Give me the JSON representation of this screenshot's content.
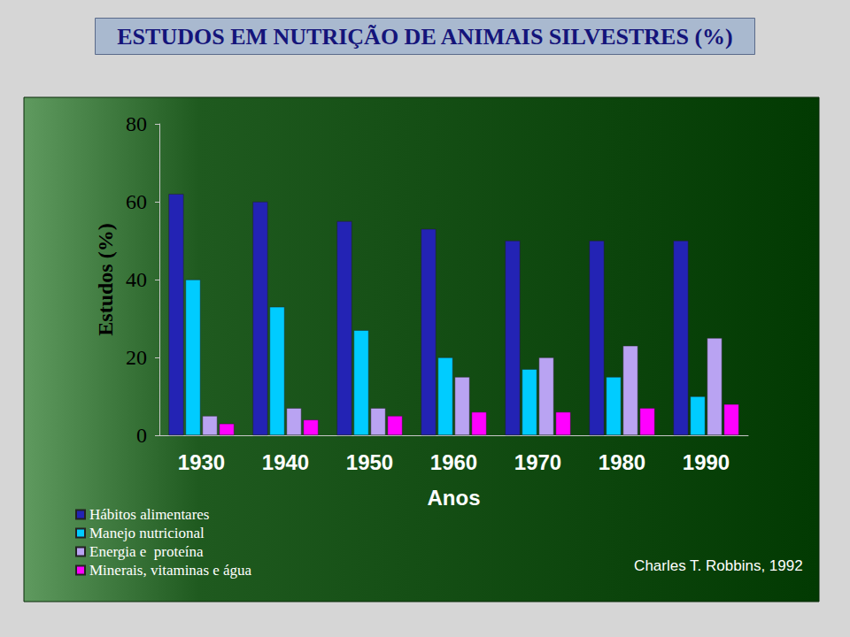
{
  "chart_data": {
    "type": "bar",
    "title": "ESTUDOS EM NUTRIÇÃO DE ANIMAIS SILVESTRES (%)",
    "x_label": "Anos",
    "y_label": "Estudos (%)",
    "annotation": "Charles T. Robbins, 1992",
    "categories": [
      "1930",
      "1940",
      "1950",
      "1960",
      "1970",
      "1980",
      "1990"
    ],
    "series": [
      {
        "name": "Hábitos alimentares",
        "color": "#2323b4",
        "values": [
          62,
          60,
          55,
          53,
          50,
          50,
          50
        ]
      },
      {
        "name": "Manejo nutricional",
        "color": "#00ccff",
        "values": [
          40,
          33,
          27,
          20,
          17,
          15,
          10
        ]
      },
      {
        "name": "Energia e  proteína",
        "color": "#b9a3f2",
        "values": [
          5,
          7,
          7,
          15,
          20,
          23,
          25
        ]
      },
      {
        "name": "Minerais, vitaminas e água",
        "color": "#ff00ff",
        "values": [
          3,
          4,
          5,
          6,
          6,
          7,
          8
        ]
      }
    ],
    "ylim": [
      0,
      80
    ],
    "yticks": [
      0,
      20,
      40,
      60,
      80
    ],
    "grid": false,
    "legend": "bottom-left"
  }
}
